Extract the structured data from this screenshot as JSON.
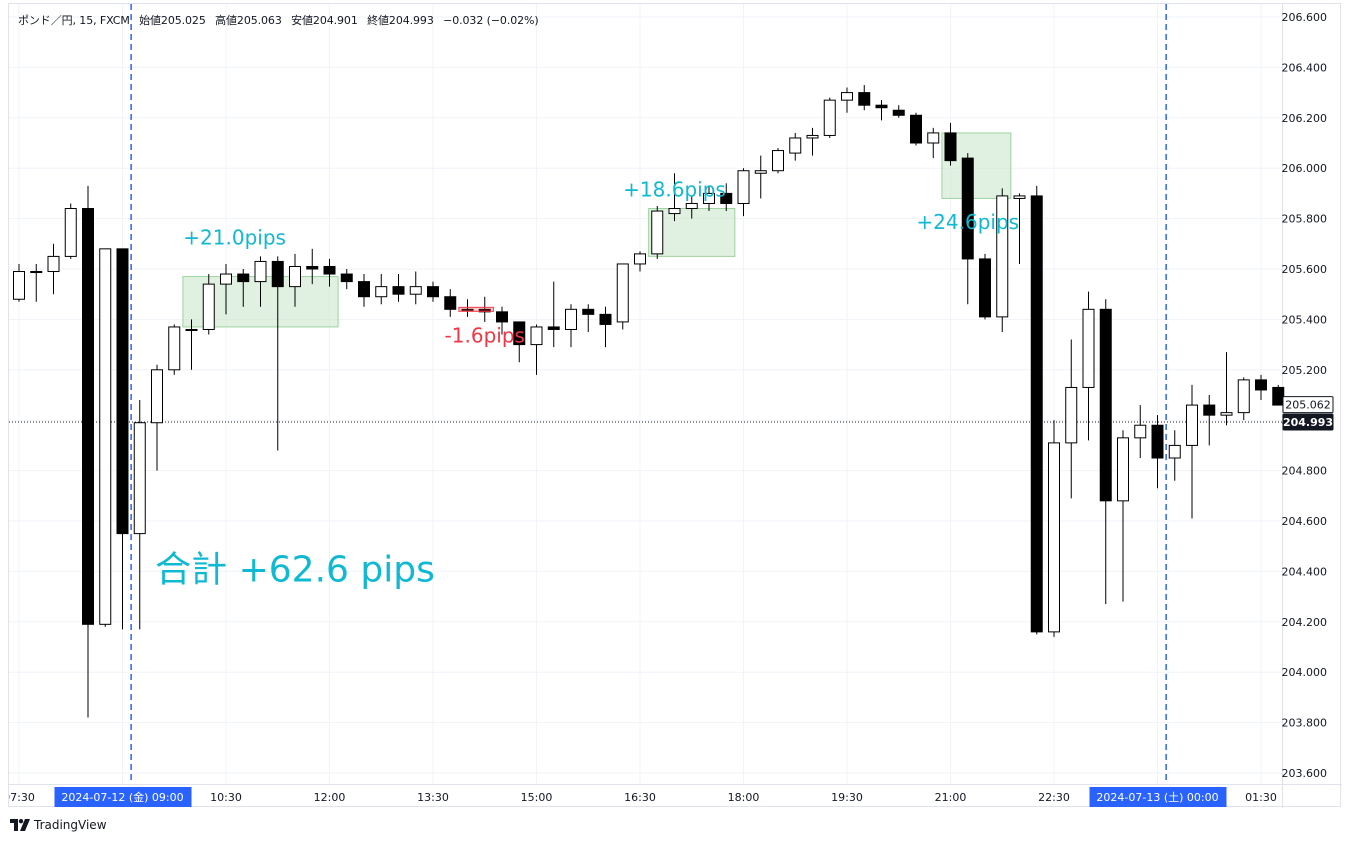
{
  "legend": {
    "symbol": "ポンド／円, 15, FXCM",
    "open": "始値205.025",
    "high": "高値205.063",
    "low": "安値204.901",
    "close": "終値204.993",
    "change": "−0.032 (−0.02%)"
  },
  "branding": {
    "name": "TradingView"
  },
  "colors": {
    "up_body": "#ffffff",
    "down_body": "#000000",
    "wick": "#000000",
    "annotation": "#0fb8d3",
    "loss": "#f23645",
    "box_fill": "#c8e6c9",
    "box_stroke": "#4caf50",
    "session_line": "#2962ff",
    "date_badge": "#2962ff"
  },
  "chart_data": {
    "type": "candlestick",
    "interval": "15",
    "ylim": [
      203.6,
      206.6
    ],
    "y_ticks": [
      "203.600",
      "203.800",
      "204.000",
      "204.200",
      "204.400",
      "204.600",
      "204.800",
      "205.000",
      "205.200",
      "205.400",
      "205.600",
      "205.800",
      "206.000",
      "206.200",
      "206.400",
      "206.600"
    ],
    "x_tick_labels": [
      {
        "i": 0,
        "text": "07:30"
      },
      {
        "i": 6,
        "text": "2024-07-12 (金)   09:00",
        "badge": true
      },
      {
        "i": 12,
        "text": "10:30"
      },
      {
        "i": 18,
        "text": "12:00"
      },
      {
        "i": 24,
        "text": "13:30"
      },
      {
        "i": 30,
        "text": "15:00"
      },
      {
        "i": 36,
        "text": "16:30"
      },
      {
        "i": 42,
        "text": "18:00"
      },
      {
        "i": 48,
        "text": "19:30"
      },
      {
        "i": 54,
        "text": "21:00"
      },
      {
        "i": 60,
        "text": "22:30"
      },
      {
        "i": 66,
        "text": "2024-07-13 (土)   00:00",
        "badge": true
      },
      {
        "i": 72,
        "text": "01:30"
      }
    ],
    "session_lines": [
      6.5,
      66.5
    ],
    "candles": [
      {
        "t": "07:15",
        "o": 205.48,
        "h": 205.62,
        "l": 205.47,
        "c": 205.59
      },
      {
        "t": "07:30",
        "o": 205.59,
        "h": 205.62,
        "l": 205.47,
        "c": 205.59
      },
      {
        "t": "07:45",
        "o": 205.59,
        "h": 205.7,
        "l": 205.5,
        "c": 205.65
      },
      {
        "t": "08:00",
        "o": 205.65,
        "h": 205.86,
        "l": 205.64,
        "c": 205.84
      },
      {
        "t": "08:15",
        "o": 205.84,
        "h": 205.93,
        "l": 203.82,
        "c": 204.19
      },
      {
        "t": "08:30",
        "o": 204.19,
        "h": 205.68,
        "l": 204.18,
        "c": 205.68
      },
      {
        "t": "08:45",
        "o": 205.68,
        "h": 205.68,
        "l": 204.17,
        "c": 204.55
      },
      {
        "t": "09:00",
        "o": 204.55,
        "h": 205.08,
        "l": 204.17,
        "c": 204.99
      },
      {
        "t": "09:15",
        "o": 204.99,
        "h": 205.22,
        "l": 204.8,
        "c": 205.2
      },
      {
        "t": "09:30",
        "o": 205.2,
        "h": 205.38,
        "l": 205.18,
        "c": 205.37
      },
      {
        "t": "09:45",
        "o": 205.36,
        "h": 205.4,
        "l": 205.2,
        "c": 205.36
      },
      {
        "t": "10:00",
        "o": 205.36,
        "h": 205.58,
        "l": 205.34,
        "c": 205.54
      },
      {
        "t": "10:15",
        "o": 205.54,
        "h": 205.62,
        "l": 205.42,
        "c": 205.58
      },
      {
        "t": "10:30",
        "o": 205.58,
        "h": 205.6,
        "l": 205.45,
        "c": 205.55
      },
      {
        "t": "10:45",
        "o": 205.55,
        "h": 205.65,
        "l": 205.45,
        "c": 205.63
      },
      {
        "t": "11:00",
        "o": 205.63,
        "h": 205.65,
        "l": 204.88,
        "c": 205.53
      },
      {
        "t": "11:15",
        "o": 205.53,
        "h": 205.66,
        "l": 205.45,
        "c": 205.61
      },
      {
        "t": "11:30",
        "o": 205.61,
        "h": 205.68,
        "l": 205.54,
        "c": 205.6
      },
      {
        "t": "11:45",
        "o": 205.61,
        "h": 205.64,
        "l": 205.53,
        "c": 205.58
      },
      {
        "t": "12:00",
        "o": 205.58,
        "h": 205.6,
        "l": 205.52,
        "c": 205.55
      },
      {
        "t": "12:15",
        "o": 205.55,
        "h": 205.58,
        "l": 205.45,
        "c": 205.49
      },
      {
        "t": "12:30",
        "o": 205.49,
        "h": 205.58,
        "l": 205.46,
        "c": 205.53
      },
      {
        "t": "12:45",
        "o": 205.53,
        "h": 205.58,
        "l": 205.47,
        "c": 205.5
      },
      {
        "t": "13:00",
        "o": 205.5,
        "h": 205.59,
        "l": 205.46,
        "c": 205.53
      },
      {
        "t": "13:15",
        "o": 205.53,
        "h": 205.55,
        "l": 205.47,
        "c": 205.49
      },
      {
        "t": "13:30",
        "o": 205.49,
        "h": 205.52,
        "l": 205.41,
        "c": 205.44
      },
      {
        "t": "13:45",
        "o": 205.44,
        "h": 205.48,
        "l": 205.41,
        "c": 205.44
      },
      {
        "t": "14:00",
        "o": 205.44,
        "h": 205.49,
        "l": 205.39,
        "c": 205.43
      },
      {
        "t": "14:15",
        "o": 205.43,
        "h": 205.45,
        "l": 205.34,
        "c": 205.39
      },
      {
        "t": "14:30",
        "o": 205.39,
        "h": 205.39,
        "l": 205.23,
        "c": 205.3
      },
      {
        "t": "14:45",
        "o": 205.3,
        "h": 205.38,
        "l": 205.18,
        "c": 205.37
      },
      {
        "t": "15:00",
        "o": 205.37,
        "h": 205.55,
        "l": 205.29,
        "c": 205.36
      },
      {
        "t": "15:15",
        "o": 205.36,
        "h": 205.46,
        "l": 205.29,
        "c": 205.44
      },
      {
        "t": "15:30",
        "o": 205.44,
        "h": 205.46,
        "l": 205.35,
        "c": 205.42
      },
      {
        "t": "15:45",
        "o": 205.42,
        "h": 205.45,
        "l": 205.29,
        "c": 205.38
      },
      {
        "t": "16:00",
        "o": 205.39,
        "h": 205.62,
        "l": 205.36,
        "c": 205.62
      },
      {
        "t": "16:15",
        "o": 205.62,
        "h": 205.67,
        "l": 205.59,
        "c": 205.66
      },
      {
        "t": "16:30",
        "o": 205.66,
        "h": 205.85,
        "l": 205.64,
        "c": 205.83
      },
      {
        "t": "16:45",
        "o": 205.82,
        "h": 205.98,
        "l": 205.79,
        "c": 205.84
      },
      {
        "t": "17:00",
        "o": 205.84,
        "h": 205.89,
        "l": 205.8,
        "c": 205.86
      },
      {
        "t": "17:15",
        "o": 205.86,
        "h": 205.93,
        "l": 205.83,
        "c": 205.9
      },
      {
        "t": "17:30",
        "o": 205.9,
        "h": 205.94,
        "l": 205.83,
        "c": 205.86
      },
      {
        "t": "17:45",
        "o": 205.86,
        "h": 206.0,
        "l": 205.81,
        "c": 205.99
      },
      {
        "t": "18:00",
        "o": 205.98,
        "h": 206.05,
        "l": 205.88,
        "c": 205.99
      },
      {
        "t": "18:15",
        "o": 205.99,
        "h": 206.08,
        "l": 205.98,
        "c": 206.07
      },
      {
        "t": "18:30",
        "o": 206.06,
        "h": 206.14,
        "l": 206.03,
        "c": 206.12
      },
      {
        "t": "18:45",
        "o": 206.12,
        "h": 206.16,
        "l": 206.05,
        "c": 206.13
      },
      {
        "t": "19:00",
        "o": 206.13,
        "h": 206.28,
        "l": 206.12,
        "c": 206.27
      },
      {
        "t": "19:15",
        "o": 206.27,
        "h": 206.32,
        "l": 206.22,
        "c": 206.3
      },
      {
        "t": "19:30",
        "o": 206.3,
        "h": 206.33,
        "l": 206.23,
        "c": 206.25
      },
      {
        "t": "19:45",
        "o": 206.25,
        "h": 206.27,
        "l": 206.19,
        "c": 206.24
      },
      {
        "t": "20:00",
        "o": 206.23,
        "h": 206.25,
        "l": 206.2,
        "c": 206.21
      },
      {
        "t": "20:15",
        "o": 206.21,
        "h": 206.22,
        "l": 206.09,
        "c": 206.1
      },
      {
        "t": "20:30",
        "o": 206.1,
        "h": 206.16,
        "l": 206.04,
        "c": 206.14
      },
      {
        "t": "20:45",
        "o": 206.14,
        "h": 206.18,
        "l": 206.01,
        "c": 206.03
      },
      {
        "t": "21:00",
        "o": 206.04,
        "h": 206.06,
        "l": 205.46,
        "c": 205.64
      },
      {
        "t": "21:15",
        "o": 205.64,
        "h": 205.66,
        "l": 205.4,
        "c": 205.41
      },
      {
        "t": "21:30",
        "o": 205.41,
        "h": 205.92,
        "l": 205.35,
        "c": 205.89
      },
      {
        "t": "21:45",
        "o": 205.88,
        "h": 205.9,
        "l": 205.62,
        "c": 205.89
      },
      {
        "t": "22:00",
        "o": 205.89,
        "h": 205.93,
        "l": 204.15,
        "c": 204.16
      },
      {
        "t": "22:15",
        "o": 204.16,
        "h": 205.0,
        "l": 204.14,
        "c": 204.91
      },
      {
        "t": "22:30",
        "o": 204.91,
        "h": 205.32,
        "l": 204.69,
        "c": 205.13
      },
      {
        "t": "22:45",
        "o": 205.13,
        "h": 205.51,
        "l": 204.92,
        "c": 205.44
      },
      {
        "t": "23:00",
        "o": 205.44,
        "h": 205.48,
        "l": 204.27,
        "c": 204.68
      },
      {
        "t": "23:15",
        "o": 204.68,
        "h": 204.96,
        "l": 204.28,
        "c": 204.93
      },
      {
        "t": "23:30",
        "o": 204.93,
        "h": 205.06,
        "l": 204.85,
        "c": 204.98
      },
      {
        "t": "23:45",
        "o": 204.98,
        "h": 205.02,
        "l": 204.73,
        "c": 204.85
      },
      {
        "t": "00:00",
        "o": 204.85,
        "h": 204.96,
        "l": 204.76,
        "c": 204.9
      },
      {
        "t": "00:15",
        "o": 204.9,
        "h": 205.14,
        "l": 204.61,
        "c": 205.06
      },
      {
        "t": "00:30",
        "o": 205.06,
        "h": 205.1,
        "l": 204.9,
        "c": 205.02
      },
      {
        "t": "00:45",
        "o": 205.02,
        "h": 205.27,
        "l": 204.98,
        "c": 205.03
      },
      {
        "t": "01:00",
        "o": 205.03,
        "h": 205.17,
        "l": 205.0,
        "c": 205.16
      },
      {
        "t": "01:15",
        "o": 205.16,
        "h": 205.18,
        "l": 205.08,
        "c": 205.12
      },
      {
        "t": "01:30",
        "o": 205.13,
        "h": 205.14,
        "l": 205.06,
        "c": 205.06
      }
    ],
    "price_labels": [
      {
        "value": 205.062,
        "text": "205.062",
        "style": "outline"
      },
      {
        "value": 204.993,
        "text": "204.993",
        "style": "filled"
      }
    ],
    "current_price_line": 204.993,
    "trade_boxes": [
      {
        "i_from": 9.5,
        "i_to": 18.5,
        "y_from": 205.37,
        "y_to": 205.57
      },
      {
        "i_from": 36.5,
        "i_to": 41.5,
        "y_from": 205.65,
        "y_to": 205.84
      },
      {
        "i_from": 53.5,
        "i_to": 57.5,
        "y_from": 205.88,
        "y_to": 206.14
      }
    ],
    "loss_marker": {
      "i_from": 25.5,
      "i_to": 27.5,
      "value": 205.44
    },
    "annotations": [
      {
        "text": "+21.0pips",
        "i": 12.5,
        "value": 205.72,
        "size": 20,
        "kind": "gain"
      },
      {
        "text": "-1.6pips",
        "i": 27,
        "value": 205.33,
        "size": 20,
        "kind": "loss"
      },
      {
        "text": "+18.6pips",
        "i": 38,
        "value": 205.91,
        "size": 20,
        "kind": "gain"
      },
      {
        "text": "+24.6pips",
        "i": 55,
        "value": 205.78,
        "size": 20,
        "kind": "gain"
      },
      {
        "text": "合計 +62.6 pips",
        "i": 16,
        "value": 204.4,
        "size": 36,
        "kind": "gain"
      }
    ]
  }
}
